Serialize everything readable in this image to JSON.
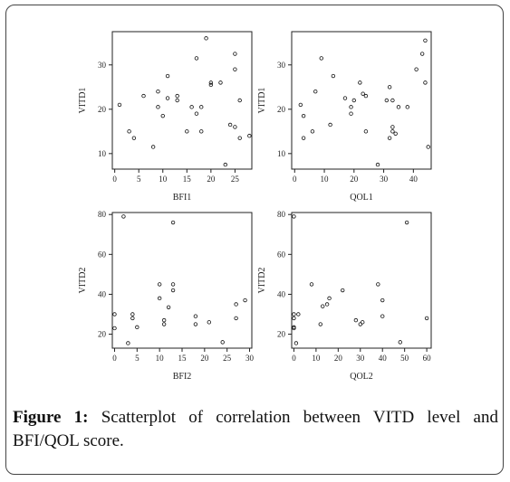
{
  "caption": {
    "label": "Figure 1:",
    "text": "Scatterplot of correlation between VITD level and BFI/QOL score."
  },
  "chart_data": [
    {
      "type": "scatter",
      "xlabel": "BFI1",
      "ylabel": "VITD1",
      "xlim": [
        -0.5,
        28.5
      ],
      "ylim": [
        6.5,
        37.5
      ],
      "xticks": [
        0,
        5,
        10,
        15,
        20,
        25
      ],
      "yticks": [
        10,
        20,
        30
      ],
      "x": [
        1,
        3,
        4,
        6,
        8,
        9,
        9,
        10,
        11,
        11,
        13,
        13,
        15,
        16,
        17,
        17,
        18,
        18,
        19,
        20,
        20,
        22,
        23,
        24,
        25,
        25,
        25,
        26,
        26,
        28
      ],
      "y": [
        21,
        15,
        13.5,
        23,
        11.5,
        20.5,
        24,
        18.5,
        22.5,
        27.5,
        23,
        22,
        15,
        20.5,
        31.5,
        19,
        20.5,
        15,
        36,
        25.5,
        26,
        26,
        7.5,
        16.5,
        16,
        29,
        32.5,
        13.5,
        22,
        14
      ]
    },
    {
      "type": "scatter",
      "xlabel": "QOL1",
      "ylabel": "VITD1",
      "xlim": [
        -1,
        46
      ],
      "ylim": [
        6.5,
        37.5
      ],
      "xticks": [
        0,
        10,
        20,
        30,
        40
      ],
      "yticks": [
        10,
        20,
        30
      ],
      "x": [
        2,
        3,
        3,
        6,
        7,
        9,
        12,
        13,
        17,
        19,
        19,
        20,
        22,
        23,
        24,
        24,
        28,
        31,
        32,
        32,
        33,
        33,
        33,
        34,
        35,
        38,
        41,
        43,
        44,
        44,
        45
      ],
      "y": [
        21,
        18.5,
        13.5,
        15,
        24,
        31.5,
        16.5,
        27.5,
        22.5,
        20.5,
        19,
        22,
        26,
        23.5,
        23,
        15,
        7.5,
        22,
        13.5,
        25,
        15,
        16,
        22,
        14.5,
        20.5,
        20.5,
        29,
        32.5,
        26,
        35.5,
        11.5
      ]
    },
    {
      "type": "scatter",
      "xlabel": "BFI2",
      "ylabel": "VITD2",
      "xlim": [
        -0.5,
        30.5
      ],
      "ylim": [
        13,
        81
      ],
      "xticks": [
        0,
        5,
        10,
        15,
        20,
        25,
        30
      ],
      "yticks": [
        20,
        40,
        60,
        80
      ],
      "x": [
        0,
        0,
        2,
        3,
        4,
        4,
        5,
        10,
        10,
        11,
        11,
        12,
        13,
        13,
        13,
        18,
        18,
        21,
        24,
        27,
        27,
        29
      ],
      "y": [
        23,
        30,
        79,
        15.5,
        28,
        30,
        23.5,
        38,
        45,
        27,
        25,
        33.5,
        76,
        42,
        45,
        29,
        25,
        26,
        16,
        28,
        35,
        37
      ]
    },
    {
      "type": "scatter",
      "xlabel": "QOL2",
      "ylabel": "VITD2",
      "xlim": [
        -1,
        62
      ],
      "ylim": [
        13,
        81
      ],
      "xticks": [
        0,
        10,
        20,
        30,
        40,
        50,
        60
      ],
      "yticks": [
        20,
        40,
        60,
        80
      ],
      "x": [
        0,
        0,
        0,
        0,
        0,
        1,
        2,
        8,
        12,
        13,
        15,
        16,
        22,
        28,
        30,
        31,
        38,
        40,
        40,
        48,
        51,
        60
      ],
      "y": [
        79,
        30,
        28,
        23.5,
        23,
        15.5,
        30,
        45,
        25,
        34,
        35,
        38,
        42,
        27,
        25,
        26,
        45,
        37,
        29,
        16,
        76,
        28
      ]
    }
  ]
}
